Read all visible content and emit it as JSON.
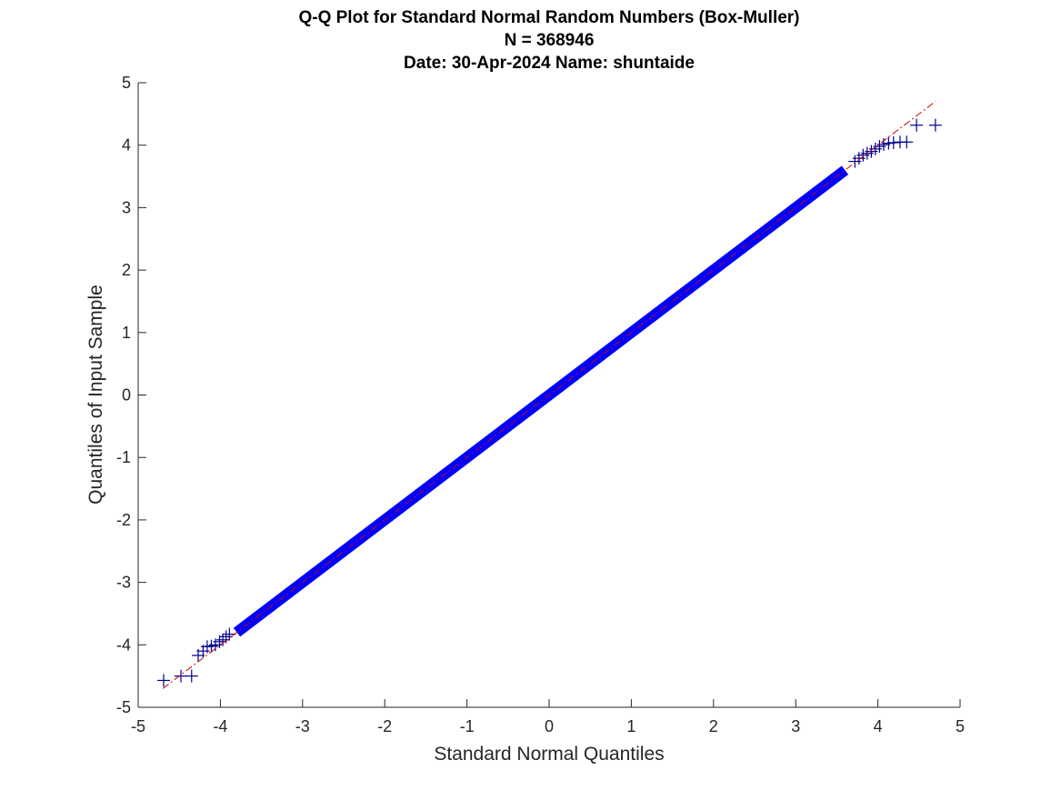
{
  "chart_data": {
    "type": "scatter",
    "title_lines": [
      "Q-Q Plot for Standard Normal Random Numbers (Box-Muller)",
      "N = 368946",
      "Date: 30-Apr-2024 Name: shuntaide"
    ],
    "xlabel": "Standard Normal Quantiles",
    "ylabel": "Quantiles of Input Sample",
    "xlim": [
      -5,
      5
    ],
    "ylim": [
      -5,
      5
    ],
    "x_ticks": [
      "-5",
      "-4",
      "-3",
      "-2",
      "-1",
      "0",
      "1",
      "2",
      "3",
      "4",
      "5"
    ],
    "y_ticks": [
      "-5",
      "-4",
      "-3",
      "-2",
      "-1",
      "0",
      "1",
      "2",
      "3",
      "4",
      "5"
    ],
    "grid": false,
    "legend": "none",
    "colors": {
      "points": "#0000ff",
      "tail_markers": "#00008b",
      "reference_line": "#cc0000",
      "axes": "#262626"
    },
    "reference_line": {
      "style": "dash-dot",
      "x": [
        -4.7,
        4.7
      ],
      "y": [
        -4.7,
        4.7
      ]
    },
    "series": [
      {
        "marker": "+",
        "note_points_dense_band": {
          "x_range": [
            -3.8,
            3.6
          ],
          "slope": 1.0,
          "intercept": 0.0
        },
        "tail_points": [
          {
            "x": -4.69,
            "y": -4.57
          },
          {
            "x": -4.48,
            "y": -4.5
          },
          {
            "x": -4.35,
            "y": -4.5
          },
          {
            "x": -4.27,
            "y": -4.17
          },
          {
            "x": -4.21,
            "y": -4.1
          },
          {
            "x": -4.16,
            "y": -4.03
          },
          {
            "x": -4.11,
            "y": -4.02
          },
          {
            "x": -4.06,
            "y": -4.0
          },
          {
            "x": -4.01,
            "y": -3.95
          },
          {
            "x": -3.97,
            "y": -3.92
          },
          {
            "x": -3.93,
            "y": -3.87
          },
          {
            "x": -3.89,
            "y": -3.83
          },
          {
            "x": 3.72,
            "y": 3.74
          },
          {
            "x": 3.77,
            "y": 3.79
          },
          {
            "x": 3.82,
            "y": 3.84
          },
          {
            "x": 3.87,
            "y": 3.87
          },
          {
            "x": 3.92,
            "y": 3.9
          },
          {
            "x": 3.97,
            "y": 3.94
          },
          {
            "x": 4.02,
            "y": 3.98
          },
          {
            "x": 4.07,
            "y": 4.01
          },
          {
            "x": 4.13,
            "y": 4.03
          },
          {
            "x": 4.19,
            "y": 4.04
          },
          {
            "x": 4.27,
            "y": 4.05
          },
          {
            "x": 4.35,
            "y": 4.05
          },
          {
            "x": 4.47,
            "y": 4.32
          },
          {
            "x": 4.7,
            "y": 4.32
          }
        ]
      }
    ]
  }
}
